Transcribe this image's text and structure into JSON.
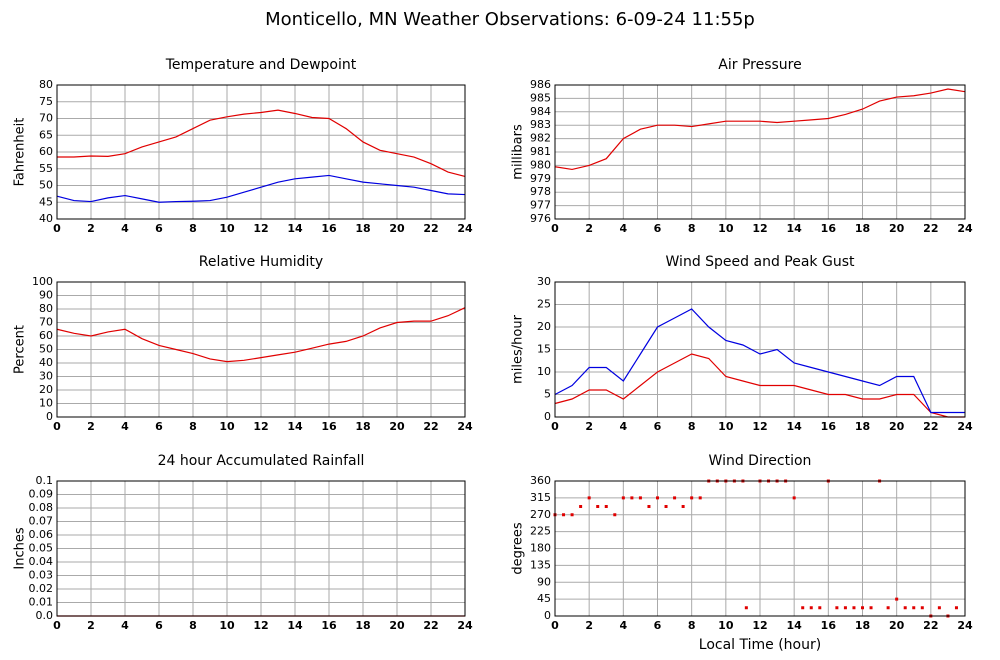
{
  "title": "Monticello, MN Weather Observations: 6-09-24 11:55p",
  "chart_data": [
    {
      "type": "line",
      "title": "Temperature and Dewpoint",
      "y_label": "Fahrenheit",
      "x": [
        0,
        1,
        2,
        3,
        4,
        5,
        6,
        7,
        8,
        9,
        10,
        11,
        12,
        13,
        14,
        15,
        16,
        17,
        18,
        19,
        20,
        21,
        22,
        23,
        24
      ],
      "series": [
        {
          "color": "#e00000",
          "values": [
            58.5,
            58.5,
            58.8,
            58.7,
            59.5,
            61.5,
            63,
            64.5,
            67,
            69.5,
            70.5,
            71.3,
            71.8,
            72.5,
            71.5,
            70.3,
            70,
            67,
            63,
            60.5,
            59.5,
            58.5,
            56.5,
            54,
            52.7
          ]
        },
        {
          "color": "#0000e0",
          "values": [
            46.8,
            45.5,
            45.2,
            46.3,
            47,
            46,
            45,
            45.2,
            45.3,
            45.5,
            46.5,
            48,
            49.5,
            51,
            52,
            52.5,
            53,
            52,
            51,
            50.5,
            50,
            49.5,
            48.5,
            47.5,
            47.3
          ]
        }
      ],
      "xlim": [
        0,
        24
      ],
      "xticks": [
        0,
        2,
        4,
        6,
        8,
        10,
        12,
        14,
        16,
        18,
        20,
        22,
        24
      ],
      "ylim": [
        40,
        80
      ],
      "yticks": [
        40,
        45,
        50,
        55,
        60,
        65,
        70,
        75,
        80
      ],
      "grid": true
    },
    {
      "type": "line",
      "title": "Air Pressure",
      "y_label": "millibars",
      "x": [
        0,
        1,
        2,
        3,
        4,
        5,
        6,
        7,
        8,
        9,
        10,
        11,
        12,
        13,
        14,
        15,
        16,
        17,
        18,
        19,
        20,
        21,
        22,
        23,
        24
      ],
      "series": [
        {
          "color": "#e00000",
          "values": [
            979.9,
            979.7,
            980,
            980.5,
            982,
            982.7,
            983,
            983,
            982.9,
            983.1,
            983.3,
            983.3,
            983.3,
            983.2,
            983.3,
            983.4,
            983.5,
            983.8,
            984.2,
            984.8,
            985.1,
            985.2,
            985.4,
            985.7,
            985.5
          ]
        }
      ],
      "xlim": [
        0,
        24
      ],
      "xticks": [
        0,
        2,
        4,
        6,
        8,
        10,
        12,
        14,
        16,
        18,
        20,
        22,
        24
      ],
      "ylim": [
        976,
        986
      ],
      "yticks": [
        976,
        977,
        978,
        979,
        980,
        981,
        982,
        983,
        984,
        985,
        986
      ],
      "grid": true
    },
    {
      "type": "line",
      "title": "Relative Humidity",
      "y_label": "Percent",
      "x": [
        0,
        1,
        2,
        3,
        4,
        5,
        6,
        7,
        8,
        9,
        10,
        11,
        12,
        13,
        14,
        15,
        16,
        17,
        18,
        19,
        20,
        21,
        22,
        23,
        24
      ],
      "series": [
        {
          "color": "#e00000",
          "values": [
            65,
            62,
            60,
            63,
            65,
            58,
            53,
            50,
            47,
            43,
            41,
            42,
            44,
            46,
            48,
            51,
            54,
            56,
            60,
            66,
            70,
            71,
            71,
            75,
            81
          ]
        }
      ],
      "xlim": [
        0,
        24
      ],
      "xticks": [
        0,
        2,
        4,
        6,
        8,
        10,
        12,
        14,
        16,
        18,
        20,
        22,
        24
      ],
      "ylim": [
        0,
        100
      ],
      "yticks": [
        0,
        10,
        20,
        30,
        40,
        50,
        60,
        70,
        80,
        90,
        100
      ],
      "grid": true
    },
    {
      "type": "line",
      "title": "Wind Speed and Peak Gust",
      "y_label": "miles/hour",
      "x": [
        0,
        1,
        2,
        3,
        4,
        5,
        6,
        7,
        8,
        9,
        10,
        11,
        12,
        13,
        14,
        15,
        16,
        17,
        18,
        19,
        20,
        21,
        22,
        23,
        24
      ],
      "series": [
        {
          "color": "#e00000",
          "values": [
            3,
            4,
            6,
            6,
            4,
            7,
            10,
            12,
            14,
            13,
            9,
            8,
            7,
            7,
            7,
            6,
            5,
            5,
            4,
            4,
            5,
            5,
            1,
            0,
            0
          ]
        },
        {
          "color": "#0000e0",
          "values": [
            5,
            7,
            11,
            11,
            8,
            14,
            20,
            22,
            24,
            20,
            17,
            16,
            14,
            15,
            12,
            11,
            10,
            9,
            8,
            7,
            9,
            9,
            1,
            1,
            1
          ]
        }
      ],
      "xlim": [
        0,
        24
      ],
      "xticks": [
        0,
        2,
        4,
        6,
        8,
        10,
        12,
        14,
        16,
        18,
        20,
        22,
        24
      ],
      "ylim": [
        0,
        30
      ],
      "yticks": [
        0,
        5,
        10,
        15,
        20,
        25,
        30
      ],
      "grid": true
    },
    {
      "type": "line",
      "title": "24 hour Accumulated Rainfall",
      "y_label": "Inches",
      "x": [
        0,
        24
      ],
      "series": [
        {
          "color": "#e00000",
          "values": [
            0,
            0
          ]
        }
      ],
      "xlim": [
        0,
        24
      ],
      "xticks": [
        0,
        2,
        4,
        6,
        8,
        10,
        12,
        14,
        16,
        18,
        20,
        22,
        24
      ],
      "ylim": [
        0,
        0.1
      ],
      "yticks": [
        {
          "value": 0,
          "label": "0.0"
        },
        0.01,
        0.02,
        0.03,
        0.04,
        0.05,
        0.06,
        0.07,
        0.08,
        0.09,
        0.1
      ],
      "grid": true
    },
    {
      "type": "scatter",
      "title": "Wind Direction",
      "y_label": "degrees",
      "x_label": "Local Time (hour)",
      "x": [
        0,
        0.5,
        1,
        1.5,
        2,
        2.5,
        3,
        3.5,
        4,
        4.5,
        5,
        5.5,
        6,
        6.5,
        7,
        7.5,
        8,
        8.5,
        9,
        9.5,
        10,
        10.5,
        11,
        11.2,
        12,
        12.5,
        13,
        13.5,
        14,
        14.5,
        15,
        15.5,
        16,
        16.5,
        17,
        17.5,
        18,
        18.5,
        19,
        19.5,
        20,
        20.5,
        21,
        21.5,
        22,
        22.5,
        23,
        23.5
      ],
      "series": [
        {
          "color": "#e00000",
          "values": [
            270,
            270,
            270,
            292,
            315,
            292,
            292,
            270,
            315,
            315,
            315,
            292,
            315,
            292,
            315,
            292,
            315,
            315,
            360,
            360,
            360,
            360,
            360,
            22,
            360,
            360,
            360,
            360,
            315,
            22,
            22,
            22,
            360,
            22,
            22,
            22,
            22,
            22,
            360,
            22,
            45,
            22,
            22,
            22,
            0,
            22,
            0,
            22
          ]
        }
      ],
      "xlim": [
        0,
        24
      ],
      "xticks": [
        0,
        2,
        4,
        6,
        8,
        10,
        12,
        14,
        16,
        18,
        20,
        22,
        24
      ],
      "ylim": [
        0,
        360
      ],
      "yticks": [
        0,
        45,
        90,
        135,
        180,
        225,
        270,
        315,
        360
      ],
      "grid": true
    }
  ]
}
